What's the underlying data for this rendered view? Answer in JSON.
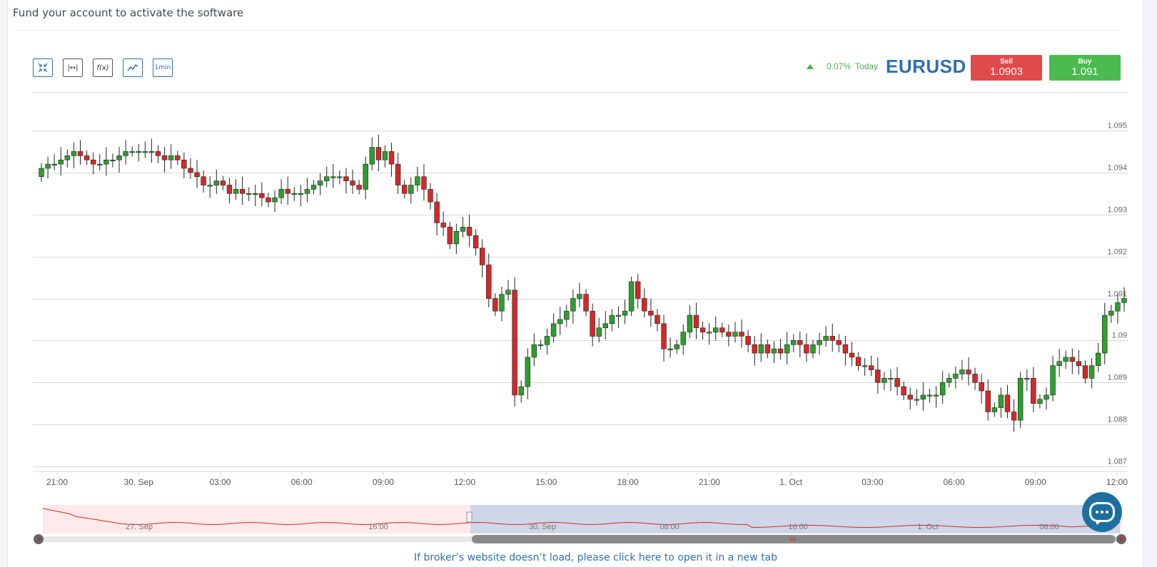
{
  "header": {
    "title": "Fund your account to activate the software"
  },
  "toolbar": {
    "buttons": [
      {
        "name": "collapse-button",
        "label": ""
      },
      {
        "name": "range-button",
        "label": "|↔|"
      },
      {
        "name": "indicators-button",
        "label": "f(x)"
      },
      {
        "name": "chart-type-button",
        "label": ""
      },
      {
        "name": "interval-button",
        "label": "1min"
      }
    ]
  },
  "quote": {
    "change": "0.07%",
    "period": "Today",
    "symbol": "EURUSD",
    "sell_label": "Sell",
    "sell_price": "1.0903",
    "buy_label": "Buy",
    "buy_price": "1.091"
  },
  "footer": {
    "link_text": "If broker’s website doesn’t load, please click here to open it in a new tab"
  },
  "colors": {
    "up": "#2ca02c",
    "down": "#d62728",
    "accent": "#2f6fb1",
    "grid": "#d5d8dc"
  },
  "chart_data": {
    "type": "candlestick",
    "title": "",
    "ylim": [
      1.087,
      1.095
    ],
    "yticks": [
      "1.095",
      "1.094",
      "1.093",
      "1.092",
      "1.091",
      "1.09",
      "1.089",
      "1.088",
      "1.087"
    ],
    "xticks": [
      "21:00",
      "30. Sep",
      "03:00",
      "06:00",
      "09:00",
      "12:00",
      "15:00",
      "18:00",
      "21:00",
      "1. Oct",
      "03:00",
      "06:00",
      "09:00",
      "12:00"
    ],
    "navigator_labels": [
      "27. Sep",
      "16:00",
      "30. Sep",
      "08:00",
      "16:00",
      "1. Oct",
      "08:00"
    ],
    "grid": true,
    "candles_close": [
      1.0941,
      1.0942,
      1.0942,
      1.0943,
      1.0944,
      1.0945,
      1.0944,
      1.0943,
      1.0942,
      1.0942,
      1.0943,
      1.0943,
      1.0944,
      1.0945,
      1.0945,
      1.0945,
      1.0945,
      1.0945,
      1.0944,
      1.0943,
      1.0944,
      1.0943,
      1.0941,
      1.094,
      1.0939,
      1.0937,
      1.0937,
      1.0938,
      1.0937,
      1.0935,
      1.0936,
      1.0935,
      1.0935,
      1.0935,
      1.0934,
      1.0933,
      1.0934,
      1.0936,
      1.0935,
      1.0935,
      1.0935,
      1.0936,
      1.0937,
      1.0938,
      1.0939,
      1.0939,
      1.0939,
      1.0938,
      1.0937,
      1.0936,
      1.0942,
      1.0946,
      1.0943,
      1.0945,
      1.0942,
      1.0937,
      1.0935,
      1.0937,
      1.0939,
      1.0936,
      1.0933,
      1.0928,
      1.0927,
      1.0923,
      1.0926,
      1.0927,
      1.0925,
      1.0922,
      1.0918,
      1.091,
      1.0907,
      1.0911,
      1.0912,
      1.0887,
      1.0889,
      1.0896,
      1.0899,
      1.0899,
      1.0901,
      1.0904,
      1.0905,
      1.0907,
      1.091,
      1.0911,
      1.0907,
      1.0901,
      1.0903,
      1.0904,
      1.0906,
      1.0906,
      1.0907,
      1.0914,
      1.091,
      1.0907,
      1.0906,
      1.0904,
      1.0898,
      1.0898,
      1.0899,
      1.0902,
      1.0906,
      1.0903,
      1.0902,
      1.0902,
      1.0903,
      1.0902,
      1.0901,
      1.0902,
      1.0901,
      1.0899,
      1.0897,
      1.0899,
      1.0897,
      1.0898,
      1.0897,
      1.0899,
      1.09,
      1.0899,
      1.0897,
      1.0899,
      1.09,
      1.0901,
      1.09,
      1.0899,
      1.0897,
      1.0896,
      1.0894,
      1.0894,
      1.0893,
      1.089,
      1.0891,
      1.0891,
      1.0889,
      1.0887,
      1.0886,
      1.0886,
      1.0887,
      1.0887,
      1.0887,
      1.089,
      1.0891,
      1.0892,
      1.0893,
      1.0892,
      1.089,
      1.0888,
      1.0883,
      1.0884,
      1.0887,
      1.0883,
      1.0881,
      1.0891,
      1.0891,
      1.0885,
      1.0886,
      1.0887,
      1.0894,
      1.0895,
      1.0896,
      1.0895,
      1.0894,
      1.0891,
      1.0894,
      1.0897,
      1.0906,
      1.0907,
      1.0909,
      1.091
    ]
  }
}
